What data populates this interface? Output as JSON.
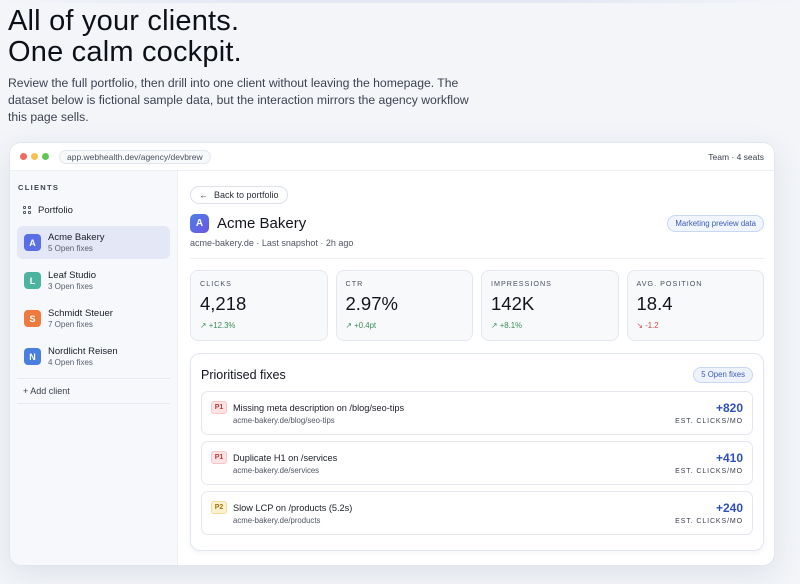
{
  "hero": {
    "headline_line1": "All of your clients.",
    "headline_line2": "One calm cockpit.",
    "description": "Review the full portfolio, then drill into one client without leaving the homepage. The dataset below is fictional sample data, but the interaction mirrors the agency workflow this page sells."
  },
  "window": {
    "url": "app.webhealth.dev/agency/devbrew",
    "plan": "Team · 4 seats"
  },
  "sidebar": {
    "section_label": "CLIENTS",
    "portfolio_label": "Portfolio",
    "clients": [
      {
        "initial": "A",
        "name": "Acme Bakery",
        "fixes": "5 Open fixes",
        "color": "#5a6ee6"
      },
      {
        "initial": "L",
        "name": "Leaf Studio",
        "fixes": "3 Open fixes",
        "color": "#4bb3a0"
      },
      {
        "initial": "S",
        "name": "Schmidt Steuer",
        "fixes": "7 Open fixes",
        "color": "#ef7a3e"
      },
      {
        "initial": "N",
        "name": "Nordlicht Reisen",
        "fixes": "4 Open fixes",
        "color": "#4a7fe0"
      }
    ],
    "add_client": "+ Add client"
  },
  "detail": {
    "back_label": "Back to portfolio",
    "avatar_initial": "A",
    "client_name": "Acme Bakery",
    "preview_badge": "Marketing preview data",
    "meta": "acme-bakery.de · Last snapshot · 2h ago",
    "kpis": [
      {
        "label": "CLICKS",
        "value": "4,218",
        "delta": "+12.3%",
        "trend": "up"
      },
      {
        "label": "CTR",
        "value": "2.97%",
        "delta": "+0.4pt",
        "trend": "up"
      },
      {
        "label": "IMPRESSIONS",
        "value": "142K",
        "delta": "+8.1%",
        "trend": "up"
      },
      {
        "label": "AVG. POSITION",
        "value": "18.4",
        "delta": "-1.2",
        "trend": "down"
      }
    ],
    "fixes": {
      "title": "Prioritised fixes",
      "badge": "5 Open fixes",
      "unit": "EST. CLICKS/MO",
      "items": [
        {
          "priority": "P1",
          "title": "Missing meta description on /blog/seo-tips",
          "url": "acme-bakery.de/blog/seo-tips",
          "impact": "+820"
        },
        {
          "priority": "P1",
          "title": "Duplicate H1 on /services",
          "url": "acme-bakery.de/services",
          "impact": "+410"
        },
        {
          "priority": "P2",
          "title": "Slow LCP on /products (5.2s)",
          "url": "acme-bakery.de/products",
          "impact": "+240"
        }
      ]
    }
  }
}
